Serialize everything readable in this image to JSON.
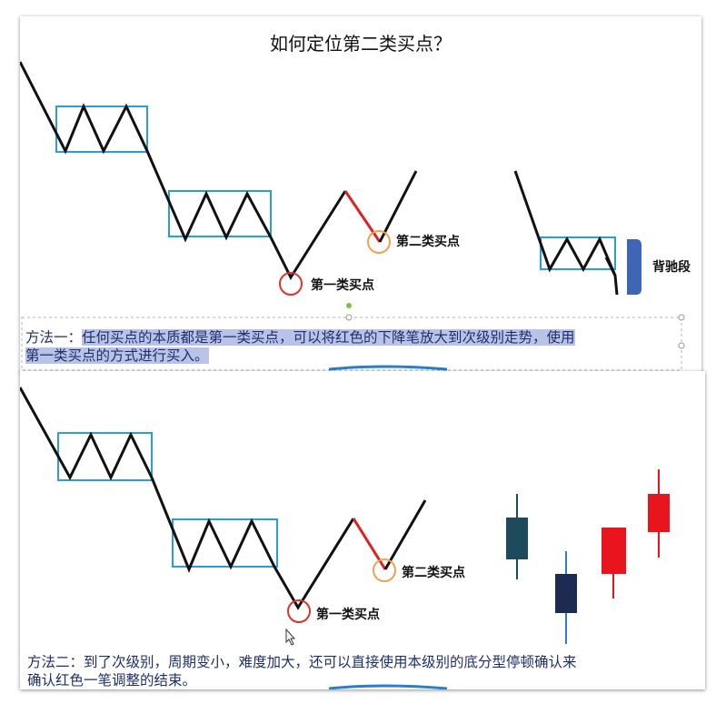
{
  "top": {
    "title": "如何定位第二类买点？",
    "first_buy_label": "第一类买点",
    "second_buy_label": "第二类买点",
    "divergence_label": "背驰段",
    "caption_prefix": "方法一：",
    "caption_line1": "任何买点的本质都是第一类买点，可以将红色的下降笔放大到次级别走势，使用",
    "caption_line2": "第一类买点的方式进行买入。"
  },
  "bottom": {
    "first_buy_label": "第一类买点",
    "second_buy_label": "第二类买点",
    "caption_line1": "方法二：到了次级别，周期变小，难度加大，还可以直接使用本级别的底分型停顿确认来",
    "caption_line2": "确认红色一笔调整的结束。"
  },
  "colors": {
    "box": "#2a9fd6",
    "red_stroke": "#e02020",
    "circle_first": "#d9352a",
    "circle_second": "#f0a050",
    "caption_text": "#1f2f6b",
    "highlight": "#b9c3e8",
    "bracket": "#3f66b5",
    "candle_teal": "#1e4a5e",
    "candle_navy": "#1c2b52",
    "candle_red": "#e8141e",
    "wick_blue": "#2a7fc8"
  }
}
